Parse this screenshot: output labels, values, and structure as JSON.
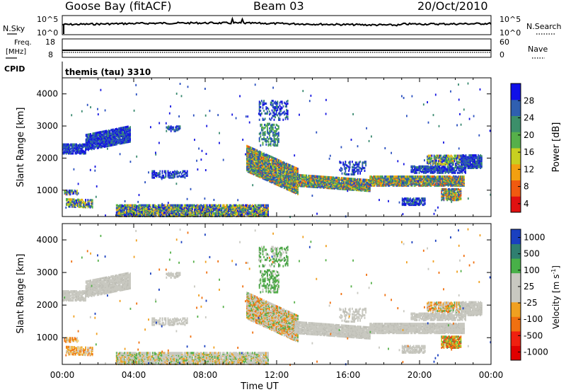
{
  "header": {
    "station": "Goose Bay (fitACF)",
    "beam": "Beam 03",
    "date": "20/Oct/2010"
  },
  "top_panels": {
    "nsky_label": "N.Sky",
    "nsky_ticks": [
      "10^5",
      "10^0"
    ],
    "nsearch_label": "N.Search",
    "nsearch_ticks": [
      "10^5",
      "10^0"
    ],
    "freq_label_1": "Freq.",
    "freq_label_2": "[MHz]",
    "freq_ticks": [
      "18",
      "8"
    ],
    "nave_label": "Nave",
    "nave_ticks": [
      "60",
      "0"
    ],
    "cpid_label": "CPID",
    "cpid_value": "themis (tau) 3310"
  },
  "chart_data": [
    {
      "type": "heatmap",
      "title": "",
      "ylabel": "Slant Range [km]",
      "xlabel": "",
      "ylim": [
        180,
        4500
      ],
      "y_ticks": [
        "4000",
        "3000",
        "2000",
        "1000"
      ],
      "colorbar_label": "Power [dB]",
      "colorbar_ticks": [
        "28",
        "24",
        "20",
        "16",
        "12",
        "8",
        "4"
      ],
      "colorbar_colors": [
        "#1010e8",
        "#2f5fb0",
        "#3c8f6a",
        "#56b04a",
        "#c8d020",
        "#f3a010",
        "#f05a10",
        "#e01010"
      ],
      "x_range_hours": [
        0,
        24
      ],
      "grid": false
    },
    {
      "type": "heatmap",
      "title": "",
      "ylabel": "Slant Range [km]",
      "xlabel": "Time UT",
      "ylim": [
        180,
        4500
      ],
      "y_ticks": [
        "4000",
        "3000",
        "2000",
        "1000"
      ],
      "x_ticks": [
        "00:00",
        "04:00",
        "08:00",
        "12:00",
        "16:00",
        "20:00",
        "00:00"
      ],
      "colorbar_label": "Velocity [m s",
      "colorbar_label_sup": "-1",
      "colorbar_label_end": "]",
      "colorbar_ticks": [
        "1000",
        "500",
        "100",
        "25",
        "-25",
        "-100",
        "-500",
        "-1000"
      ],
      "colorbar_colors": [
        "#1a40c0",
        "#2f7f70",
        "#48b048",
        "#c8c8c0",
        "#c8c8c0",
        "#f0a020",
        "#f07010",
        "#f02010",
        "#e00000"
      ],
      "x_range_hours": [
        0,
        24
      ],
      "grid": false
    }
  ],
  "colors": {
    "ground_scatter": "#c8c8c0",
    "axes": "#000000"
  }
}
